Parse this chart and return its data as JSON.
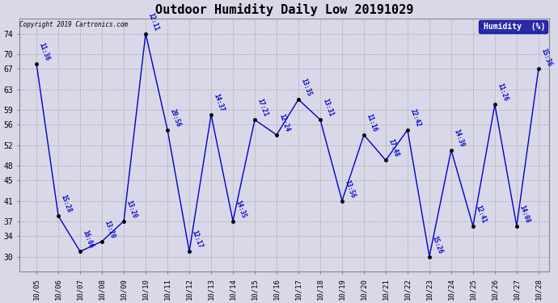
{
  "title": "Outdoor Humidity Daily Low 20191029",
  "copyright": "Copyright 2019 Cartronics.com",
  "legend_label": "Humidity  (%)",
  "dates": [
    "10/05",
    "10/06",
    "10/07",
    "10/08",
    "10/09",
    "10/10",
    "10/11",
    "10/12",
    "10/13",
    "10/14",
    "10/15",
    "10/16",
    "10/17",
    "10/18",
    "10/19",
    "10/20",
    "10/21",
    "10/22",
    "10/23",
    "10/24",
    "10/25",
    "10/26",
    "10/27",
    "10/28"
  ],
  "values": [
    68,
    38,
    31,
    33,
    37,
    74,
    55,
    31,
    58,
    37,
    57,
    54,
    61,
    57,
    41,
    54,
    49,
    55,
    30,
    51,
    36,
    60,
    36,
    67
  ],
  "time_labels": [
    "11:36",
    "15:28",
    "16:06",
    "13:20",
    "13:20",
    "12:11",
    "20:56",
    "12:17",
    "14:37",
    "14:35",
    "17:21",
    "12:24",
    "13:35",
    "13:31",
    "13:56",
    "11:16",
    "17:48",
    "22:42",
    "15:26",
    "14:39",
    "12:41",
    "11:26",
    "14:08",
    "15:36"
  ],
  "line_color": "#0000cc",
  "marker_color": "#000000",
  "bg_color": "#d8d8e8",
  "grid_color": "#aaaaaa",
  "yticks": [
    30,
    34,
    37,
    41,
    45,
    48,
    52,
    56,
    59,
    63,
    67,
    70,
    74
  ],
  "ylim": [
    27,
    77
  ],
  "xlim_left": -0.8,
  "xlim_right": 23.5,
  "legend_bg": "#000099",
  "legend_fg": "#ffffff",
  "title_fontsize": 11,
  "time_label_fontsize": 5.5,
  "xtick_fontsize": 6.5,
  "ytick_fontsize": 7
}
